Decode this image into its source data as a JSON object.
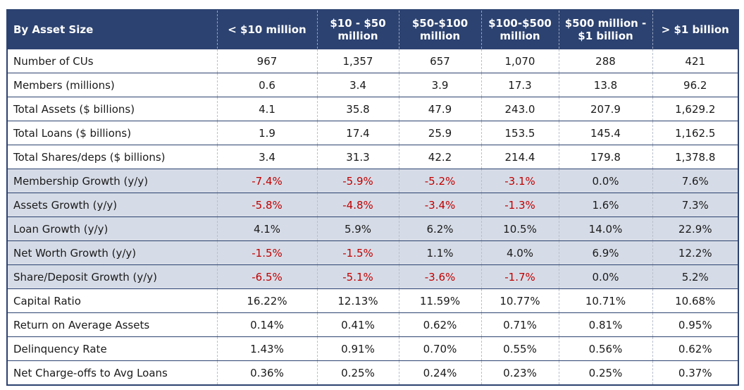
{
  "chart_data": {
    "type": "table",
    "header_label": "By Asset Size",
    "columns": [
      "< $10 million",
      "$10 - $50 million",
      "$50-$100 million",
      "$100-$500 million",
      "$500 million - $1 billion",
      "> $1 billion"
    ],
    "rows": [
      {
        "label": "Number of CUs",
        "shaded": false,
        "values": [
          "967",
          "1,357",
          "657",
          "1,070",
          "288",
          "421"
        ]
      },
      {
        "label": "Members (millions)",
        "shaded": false,
        "values": [
          "0.6",
          "3.4",
          "3.9",
          "17.3",
          "13.8",
          "96.2"
        ]
      },
      {
        "label": "Total Assets ($ billions)",
        "shaded": false,
        "values": [
          "4.1",
          "35.8",
          "47.9",
          "243.0",
          "207.9",
          "1,629.2"
        ]
      },
      {
        "label": "Total Loans ($ billions)",
        "shaded": false,
        "values": [
          "1.9",
          "17.4",
          "25.9",
          "153.5",
          "145.4",
          "1,162.5"
        ]
      },
      {
        "label": "Total Shares/deps ($ billions)",
        "shaded": false,
        "values": [
          "3.4",
          "31.3",
          "42.2",
          "214.4",
          "179.8",
          "1,378.8"
        ]
      },
      {
        "label": "Membership Growth (y/y)",
        "shaded": true,
        "values": [
          "-7.4%",
          "-5.9%",
          "-5.2%",
          "-3.1%",
          "0.0%",
          "7.6%"
        ]
      },
      {
        "label": "Assets Growth (y/y)",
        "shaded": true,
        "values": [
          "-5.8%",
          "-4.8%",
          "-3.4%",
          "-1.3%",
          "1.6%",
          "7.3%"
        ]
      },
      {
        "label": "Loan Growth (y/y)",
        "shaded": true,
        "values": [
          "4.1%",
          "5.9%",
          "6.2%",
          "10.5%",
          "14.0%",
          "22.9%"
        ]
      },
      {
        "label": "Net Worth Growth (y/y)",
        "shaded": true,
        "values": [
          "-1.5%",
          "-1.5%",
          "1.1%",
          "4.0%",
          "6.9%",
          "12.2%"
        ]
      },
      {
        "label": "Share/Deposit Growth (y/y)",
        "shaded": true,
        "values": [
          "-6.5%",
          "-5.1%",
          "-3.6%",
          "-1.7%",
          "0.0%",
          "5.2%"
        ]
      },
      {
        "label": "Capital Ratio",
        "shaded": false,
        "values": [
          "16.22%",
          "12.13%",
          "11.59%",
          "10.77%",
          "10.71%",
          "10.68%"
        ]
      },
      {
        "label": "Return on Average Assets",
        "shaded": false,
        "values": [
          "0.14%",
          "0.41%",
          "0.62%",
          "0.71%",
          "0.81%",
          "0.95%"
        ]
      },
      {
        "label": "Delinquency Rate",
        "shaded": false,
        "values": [
          "1.43%",
          "0.91%",
          "0.70%",
          "0.55%",
          "0.56%",
          "0.62%"
        ]
      },
      {
        "label": "Net Charge-offs to Avg Loans",
        "shaded": false,
        "values": [
          "0.36%",
          "0.25%",
          "0.24%",
          "0.23%",
          "0.25%",
          "0.37%"
        ]
      }
    ]
  },
  "colors": {
    "header_bg": "#2c4270",
    "header_text": "#ffffff",
    "shaded_row_bg": "#d6dce7",
    "negative_text": "#c00000",
    "text": "#1a1a1a"
  }
}
